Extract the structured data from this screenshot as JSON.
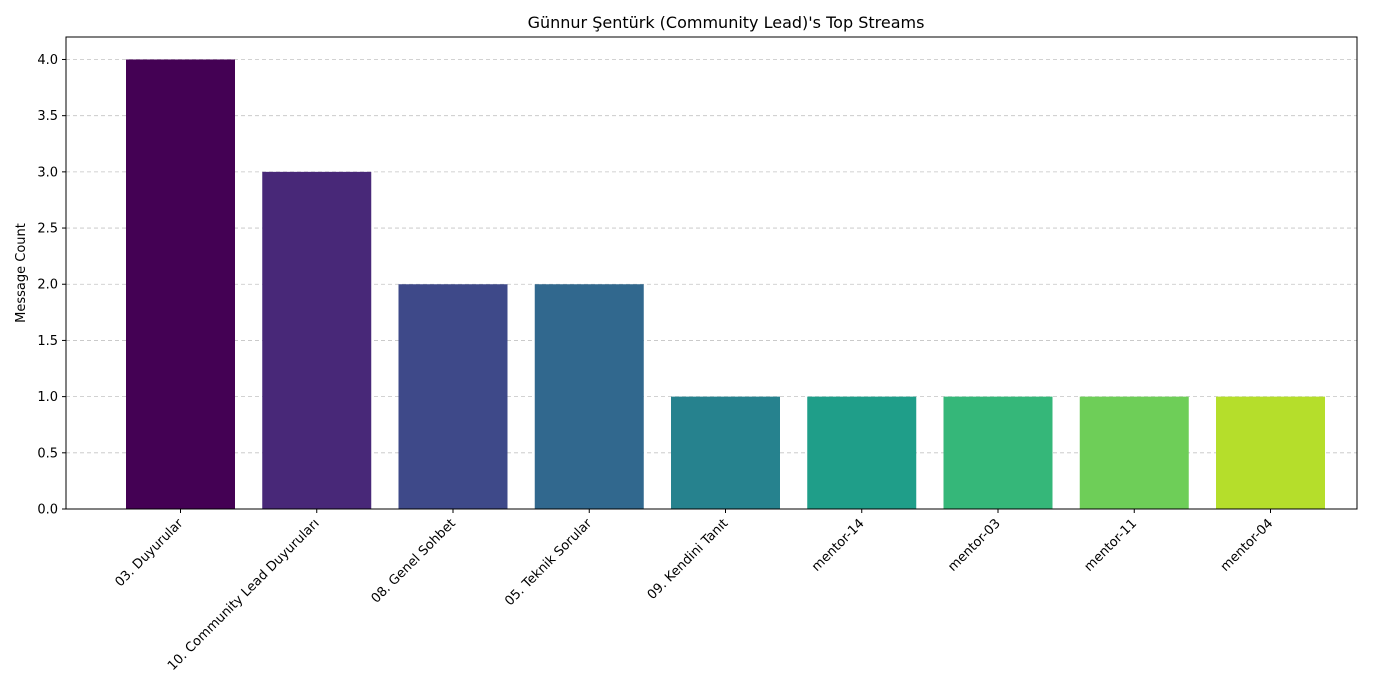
{
  "chart_data": {
    "type": "bar",
    "title": "Günnur Şentürk (Community Lead)'s Top Streams",
    "xlabel": "",
    "ylabel": "Message Count",
    "categories": [
      "03. Duyurular",
      "10. Community Lead Duyuruları",
      "08. Genel Sohbet",
      "05. Teknik Sorular",
      "09. Kendini Tanıt",
      "mentor-14",
      "mentor-03",
      "mentor-11",
      "mentor-04"
    ],
    "values": [
      4,
      3,
      2,
      2,
      1,
      1,
      1,
      1,
      1
    ],
    "colors": [
      "#440154",
      "#472d7b",
      "#3b528b",
      "#2c728e",
      "#21918c",
      "#28ae80",
      "#5ec962",
      "#addc30",
      "#fde725"
    ],
    "bar_colors_rendered": [
      "#440154",
      "#482878",
      "#3e4989",
      "#31688e",
      "#26828e",
      "#1f9e89",
      "#35b779",
      "#6ece58",
      "#b5de2b"
    ],
    "ylim": [
      0,
      4.2
    ],
    "yticks": [
      "0.0",
      "0.5",
      "1.0",
      "1.5",
      "2.0",
      "2.5",
      "3.0",
      "3.5",
      "4.0"
    ],
    "ytick_values": [
      0,
      0.5,
      1.0,
      1.5,
      2.0,
      2.5,
      3.0,
      3.5,
      4.0
    ],
    "grid": "y-dashed"
  }
}
